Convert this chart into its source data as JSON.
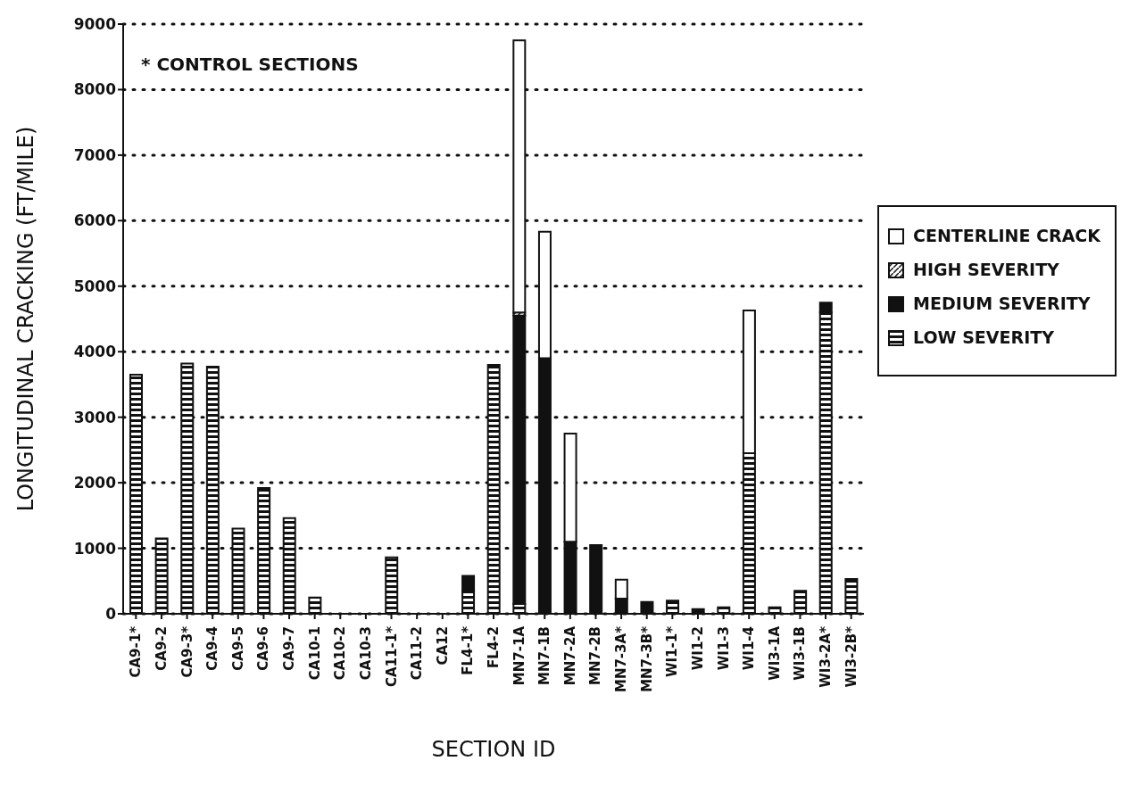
{
  "chart_data": {
    "type": "bar",
    "stacked": true,
    "xlabel": "SECTION ID",
    "ylabel": "LONGITUDINAL CRACKING (FT/MILE)",
    "annotations": [
      "* CONTROL SECTIONS"
    ],
    "categories": [
      "CA9-1*",
      "CA9-2",
      "CA9-3*",
      "CA9-4",
      "CA9-5",
      "CA9-6",
      "CA9-7",
      "CA10-1",
      "CA10-2",
      "CA10-3",
      "CA11-1*",
      "CA11-2",
      "CA12",
      "FL4-1*",
      "FL4-2",
      "MN7-1A",
      "MN7-1B",
      "MN7-2A",
      "MN7-2B",
      "MN7-3A*",
      "MN7-3B*",
      "WI1-1*",
      "WI1-2",
      "WI1-3",
      "WI1-4",
      "WI3-1A",
      "WI3-1B",
      "WI3-2A*",
      "WI3-2B*"
    ],
    "series": [
      {
        "name": "LOW SEVERITY",
        "color": "#111111",
        "values": [
          3650,
          1150,
          3820,
          3770,
          1300,
          1920,
          1460,
          250,
          0,
          0,
          860,
          0,
          0,
          350,
          3800,
          150,
          0,
          0,
          0,
          0,
          0,
          200,
          0,
          100,
          2450,
          100,
          350,
          4600,
          530
        ]
      },
      {
        "name": "MEDIUM SEVERITY",
        "color": "#111111",
        "values": [
          0,
          0,
          0,
          0,
          0,
          0,
          0,
          0,
          0,
          0,
          0,
          0,
          0,
          230,
          0,
          4400,
          3900,
          1100,
          1050,
          230,
          180,
          0,
          70,
          0,
          0,
          0,
          0,
          150,
          0
        ]
      },
      {
        "name": "HIGH SEVERITY",
        "color": "#111111",
        "values": [
          0,
          0,
          0,
          0,
          0,
          0,
          0,
          0,
          0,
          0,
          0,
          0,
          0,
          0,
          0,
          50,
          0,
          0,
          0,
          0,
          0,
          0,
          0,
          0,
          0,
          0,
          0,
          0,
          0
        ]
      },
      {
        "name": "CENTERLINE CRACK",
        "color": "#ffffff",
        "values": [
          0,
          0,
          0,
          0,
          0,
          0,
          0,
          0,
          0,
          0,
          0,
          0,
          0,
          0,
          0,
          4150,
          1930,
          1650,
          0,
          290,
          0,
          0,
          0,
          0,
          2180,
          0,
          0,
          0,
          0
        ]
      }
    ],
    "ylim": [
      0,
      9000
    ],
    "yticks": [
      0,
      1000,
      2000,
      3000,
      4000,
      5000,
      6000,
      7000,
      8000,
      9000
    ],
    "grid": "y",
    "legend": "right"
  }
}
